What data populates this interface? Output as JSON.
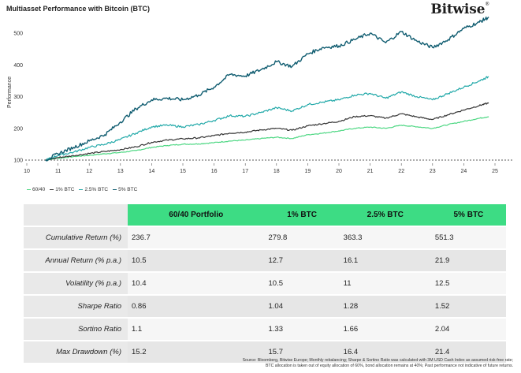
{
  "header": {
    "title": "Multiasset Performance with Bitcoin (BTC)",
    "brand": "Bitwise",
    "brand_mark": "®"
  },
  "chart_data": {
    "type": "line",
    "title": "Multiasset Performance with Bitcoin (BTC)",
    "xlabel": "",
    "ylabel": "Performance",
    "xlim": [
      10,
      25
    ],
    "ylim": [
      100,
      560
    ],
    "x_ticks": [
      10,
      11,
      12,
      13,
      14,
      15,
      16,
      17,
      18,
      19,
      20,
      21,
      22,
      23,
      24,
      25
    ],
    "y_ticks": [
      100,
      200,
      300,
      400,
      500
    ],
    "baseline": 100,
    "grid": false,
    "legend_position": "bottom-left",
    "series": [
      {
        "name": "60/40",
        "color": "#4cd782",
        "x": [
          10.6,
          11,
          11.5,
          12,
          12.5,
          13,
          13.5,
          14,
          14.5,
          15,
          15.5,
          16,
          16.5,
          17,
          17.5,
          18,
          18.5,
          19,
          19.5,
          20,
          20.5,
          21,
          21.5,
          22,
          22.5,
          23,
          23.5,
          24,
          24.5,
          24.8
        ],
        "y": [
          100,
          106,
          111,
          115,
          120,
          124,
          130,
          140,
          146,
          150,
          151,
          155,
          160,
          163,
          168,
          172,
          168,
          180,
          185,
          192,
          200,
          204,
          200,
          210,
          205,
          200,
          212,
          222,
          232,
          237
        ]
      },
      {
        "name": "1% BTC",
        "color": "#333333",
        "x": [
          10.6,
          11,
          11.5,
          12,
          12.5,
          13,
          13.5,
          14,
          14.5,
          15,
          15.5,
          16,
          16.5,
          17,
          17.5,
          18,
          18.5,
          19,
          19.5,
          20,
          20.5,
          21,
          21.5,
          22,
          22.5,
          23,
          23.5,
          24,
          24.5,
          24.8
        ],
        "y": [
          100,
          108,
          114,
          121,
          127,
          133,
          142,
          156,
          163,
          167,
          170,
          177,
          185,
          188,
          195,
          200,
          194,
          208,
          215,
          222,
          237,
          240,
          232,
          246,
          236,
          228,
          243,
          258,
          272,
          280
        ]
      },
      {
        "name": "2.5% BTC",
        "color": "#20a8a8",
        "x": [
          10.6,
          11,
          11.5,
          12,
          12.5,
          13,
          13.5,
          14,
          14.5,
          15,
          15.5,
          16,
          16.5,
          17,
          17.5,
          18,
          18.5,
          19,
          19.5,
          20,
          20.5,
          21,
          21.5,
          22,
          22.5,
          23,
          23.5,
          24,
          24.5,
          24.8
        ],
        "y": [
          100,
          115,
          125,
          140,
          150,
          165,
          185,
          205,
          210,
          205,
          212,
          225,
          240,
          238,
          250,
          265,
          255,
          275,
          283,
          290,
          305,
          310,
          295,
          315,
          300,
          290,
          310,
          330,
          350,
          363
        ]
      },
      {
        "name": "5% BTC",
        "color": "#0f5c70",
        "x": [
          10.6,
          11,
          11.5,
          12,
          12.5,
          13,
          13.5,
          14,
          14.5,
          15,
          15.5,
          16,
          16.5,
          17,
          17.5,
          18,
          18.5,
          19,
          19.5,
          20,
          20.5,
          21,
          21.5,
          22,
          22.5,
          23,
          23.5,
          24,
          24.5,
          24.8
        ],
        "y": [
          100,
          120,
          140,
          160,
          180,
          220,
          262,
          290,
          295,
          290,
          305,
          330,
          370,
          365,
          385,
          410,
          395,
          435,
          455,
          460,
          480,
          500,
          470,
          505,
          475,
          455,
          480,
          515,
          535,
          551
        ]
      }
    ]
  },
  "legend": [
    {
      "label": "60/40",
      "color": "#4cd782"
    },
    {
      "label": "1% BTC",
      "color": "#333333"
    },
    {
      "label": "2.5% BTC",
      "color": "#20a8a8"
    },
    {
      "label": "5% BTC",
      "color": "#0f5c70"
    }
  ],
  "table": {
    "columns": [
      "60/40 Portfolio",
      "1% BTC",
      "2.5% BTC",
      "5% BTC"
    ],
    "rows": [
      {
        "label": "Cumulative Return (%)",
        "values": [
          "236.7",
          "279.8",
          "363.3",
          "551.3"
        ]
      },
      {
        "label": "Annual Return (% p.a.)",
        "values": [
          "10.5",
          "12.7",
          "16.1",
          "21.9"
        ]
      },
      {
        "label": "Volatility (% p.a.)",
        "values": [
          "10.4",
          "10.5",
          "11",
          "12.5"
        ]
      },
      {
        "label": "Sharpe Ratio",
        "values": [
          "0.86",
          "1.04",
          "1.28",
          "1.52"
        ]
      },
      {
        "label": "Sortino Ratio",
        "values": [
          "1.1",
          "1.33",
          "1.66",
          "2.04"
        ]
      },
      {
        "label": "Max Drawdown (%)",
        "values": [
          "15.2",
          "15.7",
          "16.4",
          "21.4"
        ]
      }
    ]
  },
  "source": {
    "line1": "Source: Bloomberg, Bitwise Europe; Monthly rebalancing; Sharpe & Sortino Ratio was calculated with 3M USD Cash Index as assumed risk-free rate;",
    "line2": "BTC allocation is taken out of equity allocation of 60%, bond allocation remains at 40%; Past performance not indicative of future returns."
  }
}
